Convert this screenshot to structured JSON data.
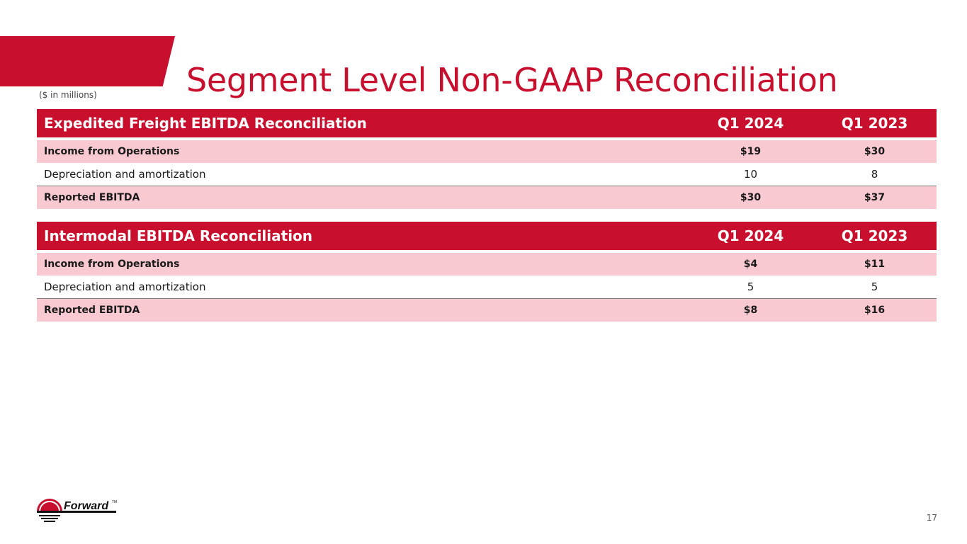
{
  "slide": {
    "title": "Segment Level Non-GAAP Reconciliation",
    "units_note": "($ in millions)",
    "page_number": "17",
    "brand_color": "#c8102e",
    "row_shade_color": "#f9c9d1",
    "logo": {
      "icon": "forward-logo-icon",
      "text": "Forward",
      "tm": "TM"
    }
  },
  "tables": {
    "expedited": {
      "header": "Expedited Freight EBITDA Reconciliation",
      "col1": "Q1 2024",
      "col2": "Q1 2023",
      "rows": [
        {
          "label": "Income from Operations",
          "q1_2024": "$19",
          "q1_2023": "$30"
        },
        {
          "label": "Depreciation and amortization",
          "q1_2024": "10",
          "q1_2023": "8"
        },
        {
          "label": "Reported EBITDA",
          "q1_2024": "$30",
          "q1_2023": "$37"
        }
      ]
    },
    "intermodal": {
      "header": "Intermodal EBITDA Reconciliation",
      "col1": "Q1 2024",
      "col2": "Q1 2023",
      "rows": [
        {
          "label": "Income from Operations",
          "q1_2024": "$4",
          "q1_2023": "$11"
        },
        {
          "label": "Depreciation and amortization",
          "q1_2024": "5",
          "q1_2023": "5"
        },
        {
          "label": "Reported EBITDA",
          "q1_2024": "$8",
          "q1_2023": "$16"
        }
      ]
    }
  }
}
